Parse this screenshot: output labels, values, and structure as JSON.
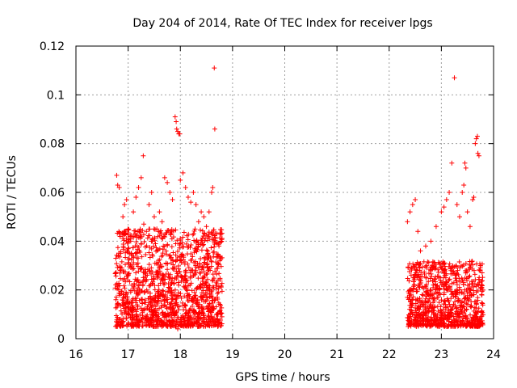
{
  "chart_data": {
    "type": "scatter",
    "title": "Day 204 of 2014, Rate Of TEC Index for receiver lpgs",
    "xlabel": "GPS time / hours",
    "ylabel": "ROTI / TECUs",
    "xlim": [
      16,
      24
    ],
    "ylim": [
      0,
      0.12
    ],
    "xticks": [
      16,
      17,
      18,
      19,
      20,
      21,
      22,
      23,
      24
    ],
    "xtick_labels": [
      "16",
      "17",
      "18",
      "19",
      "20",
      "21",
      "22",
      "23",
      "24"
    ],
    "yticks": [
      0,
      0.02,
      0.04,
      0.06,
      0.08,
      0.1,
      0.12
    ],
    "ytick_labels": [
      "0",
      "0.02",
      "0.04",
      "0.06",
      "0.08",
      "0.1",
      "0.12"
    ],
    "grid": true,
    "marker": "+",
    "color": "#ff0000",
    "series": [
      {
        "name": "ROTI",
        "points": [
          [
            16.78,
            0.067
          ],
          [
            16.8,
            0.063
          ],
          [
            16.83,
            0.062
          ],
          [
            16.86,
            0.035
          ],
          [
            16.9,
            0.05
          ],
          [
            16.93,
            0.055
          ],
          [
            16.97,
            0.057
          ],
          [
            17.0,
            0.045
          ],
          [
            17.05,
            0.04
          ],
          [
            17.1,
            0.052
          ],
          [
            17.15,
            0.058
          ],
          [
            17.2,
            0.062
          ],
          [
            17.25,
            0.066
          ],
          [
            17.29,
            0.075
          ],
          [
            17.3,
            0.047
          ],
          [
            17.35,
            0.044
          ],
          [
            17.4,
            0.055
          ],
          [
            17.45,
            0.06
          ],
          [
            17.5,
            0.05
          ],
          [
            17.55,
            0.045
          ],
          [
            17.6,
            0.052
          ],
          [
            17.65,
            0.048
          ],
          [
            17.7,
            0.066
          ],
          [
            17.75,
            0.064
          ],
          [
            17.8,
            0.06
          ],
          [
            17.85,
            0.057
          ],
          [
            17.9,
            0.091
          ],
          [
            17.92,
            0.089
          ],
          [
            17.93,
            0.086
          ],
          [
            17.95,
            0.085
          ],
          [
            17.97,
            0.084
          ],
          [
            17.99,
            0.084
          ],
          [
            18.0,
            0.065
          ],
          [
            18.05,
            0.068
          ],
          [
            18.1,
            0.062
          ],
          [
            18.15,
            0.058
          ],
          [
            18.2,
            0.056
          ],
          [
            18.25,
            0.06
          ],
          [
            18.3,
            0.055
          ],
          [
            18.35,
            0.048
          ],
          [
            18.4,
            0.052
          ],
          [
            18.45,
            0.05
          ],
          [
            18.5,
            0.046
          ],
          [
            18.55,
            0.052
          ],
          [
            18.6,
            0.06
          ],
          [
            18.62,
            0.062
          ],
          [
            18.65,
            0.111
          ],
          [
            18.66,
            0.086
          ],
          [
            18.7,
            0.043
          ],
          [
            18.74,
            0.038
          ],
          [
            17.95,
            0.004
          ],
          [
            18.1,
            0.006
          ],
          [
            17.5,
            0.007
          ],
          [
            16.85,
            0.008
          ],
          [
            17.25,
            0.008
          ],
          [
            18.3,
            0.007
          ],
          [
            18.55,
            0.009
          ],
          [
            18.7,
            0.01
          ],
          [
            22.35,
            0.048
          ],
          [
            22.4,
            0.052
          ],
          [
            22.45,
            0.055
          ],
          [
            22.5,
            0.057
          ],
          [
            22.55,
            0.044
          ],
          [
            22.6,
            0.036
          ],
          [
            22.7,
            0.038
          ],
          [
            22.8,
            0.04
          ],
          [
            22.9,
            0.046
          ],
          [
            23.0,
            0.052
          ],
          [
            23.05,
            0.054
          ],
          [
            23.1,
            0.057
          ],
          [
            23.15,
            0.06
          ],
          [
            23.2,
            0.072
          ],
          [
            23.25,
            0.107
          ],
          [
            23.3,
            0.055
          ],
          [
            23.35,
            0.05
          ],
          [
            23.4,
            0.06
          ],
          [
            23.43,
            0.063
          ],
          [
            23.45,
            0.072
          ],
          [
            23.47,
            0.07
          ],
          [
            23.5,
            0.052
          ],
          [
            23.55,
            0.046
          ],
          [
            23.6,
            0.057
          ],
          [
            23.62,
            0.058
          ],
          [
            23.65,
            0.08
          ],
          [
            23.67,
            0.082
          ],
          [
            23.69,
            0.083
          ],
          [
            23.7,
            0.076
          ],
          [
            23.72,
            0.075
          ],
          [
            23.75,
            0.03
          ],
          [
            23.78,
            0.027
          ],
          [
            22.4,
            0.01
          ],
          [
            22.6,
            0.006
          ],
          [
            22.8,
            0.008
          ],
          [
            23.0,
            0.007
          ],
          [
            23.3,
            0.007
          ],
          [
            23.5,
            0.007
          ],
          [
            23.7,
            0.008
          ]
        ],
        "dense_clusters": [
          {
            "x_range": [
              16.75,
              18.8
            ],
            "y_range": [
              0.005,
              0.045
            ],
            "count": 1400
          },
          {
            "x_range": [
              22.35,
              23.8
            ],
            "y_range": [
              0.005,
              0.032
            ],
            "count": 900
          }
        ]
      }
    ]
  }
}
